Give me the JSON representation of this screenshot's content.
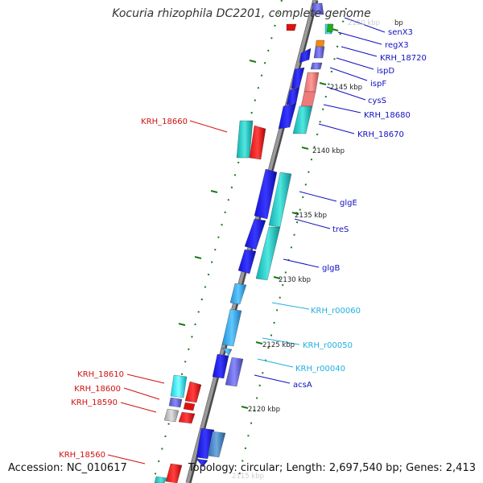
{
  "title": "Kocuria rhizophila DC2201, complete genome",
  "accession": "Accession: NC_010617",
  "topology": "Topology: circular; Length: 2,697,540 bp; Genes: 2,413",
  "colors": {
    "backbone": "#9a9a9a",
    "backbone_shadow": "#4a4a4a",
    "ruler_tick": "#1a7a1a",
    "label_blue": "#1010c0",
    "label_red": "#d01010",
    "label_cyan": "#20b0e0"
  },
  "ruler": {
    "unit": "kbp",
    "labels": [
      "2145 kbp",
      "2140 kbp",
      "2135 kbp",
      "2130 kbp",
      "2125 kbp",
      "2120 kbp"
    ],
    "partial_labels": [
      "bp",
      "2150 kbp",
      "2115 kbp"
    ]
  },
  "features": {
    "right_strand": [
      "senX3",
      "regX3",
      "KRH_18720",
      "ispD",
      "ispF",
      "cysS",
      "KRH_18680",
      "KRH_18670",
      "glgE",
      "treS",
      "glgB",
      "KRH_r00060",
      "KRH_r00050",
      "KRH_r00040",
      "acsA"
    ],
    "left_strand": [
      "KRH_18660",
      "KRH_18610",
      "KRH_18600",
      "KRH_18590",
      "KRH_18560"
    ]
  },
  "legend_text": {
    "accession": "Accession: NC_010617"
  }
}
